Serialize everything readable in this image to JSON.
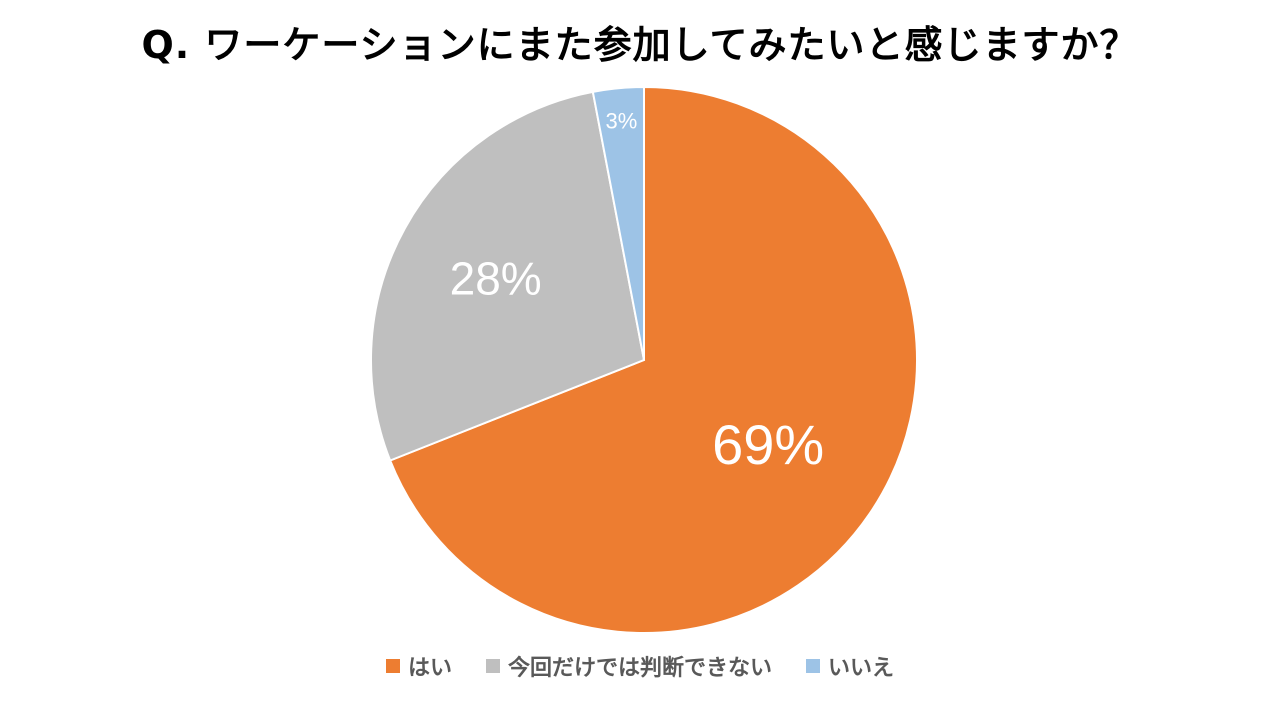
{
  "chart_data": {
    "type": "pie",
    "title": "Q. ワーケーションにまた参加してみたいと感じますか？",
    "categories": [
      "はい",
      "今回だけでは判断できない",
      "いいえ"
    ],
    "values": [
      69,
      28,
      3
    ],
    "value_labels": [
      "69%",
      "28%",
      "3%"
    ],
    "colors": [
      "#ED7D31",
      "#BFBFBF",
      "#9DC3E6"
    ],
    "label_color": "#FFFFFF",
    "slice_border_color": "#FFFFFF",
    "start": "12 o'clock, clockwise",
    "legend_position": "bottom"
  }
}
